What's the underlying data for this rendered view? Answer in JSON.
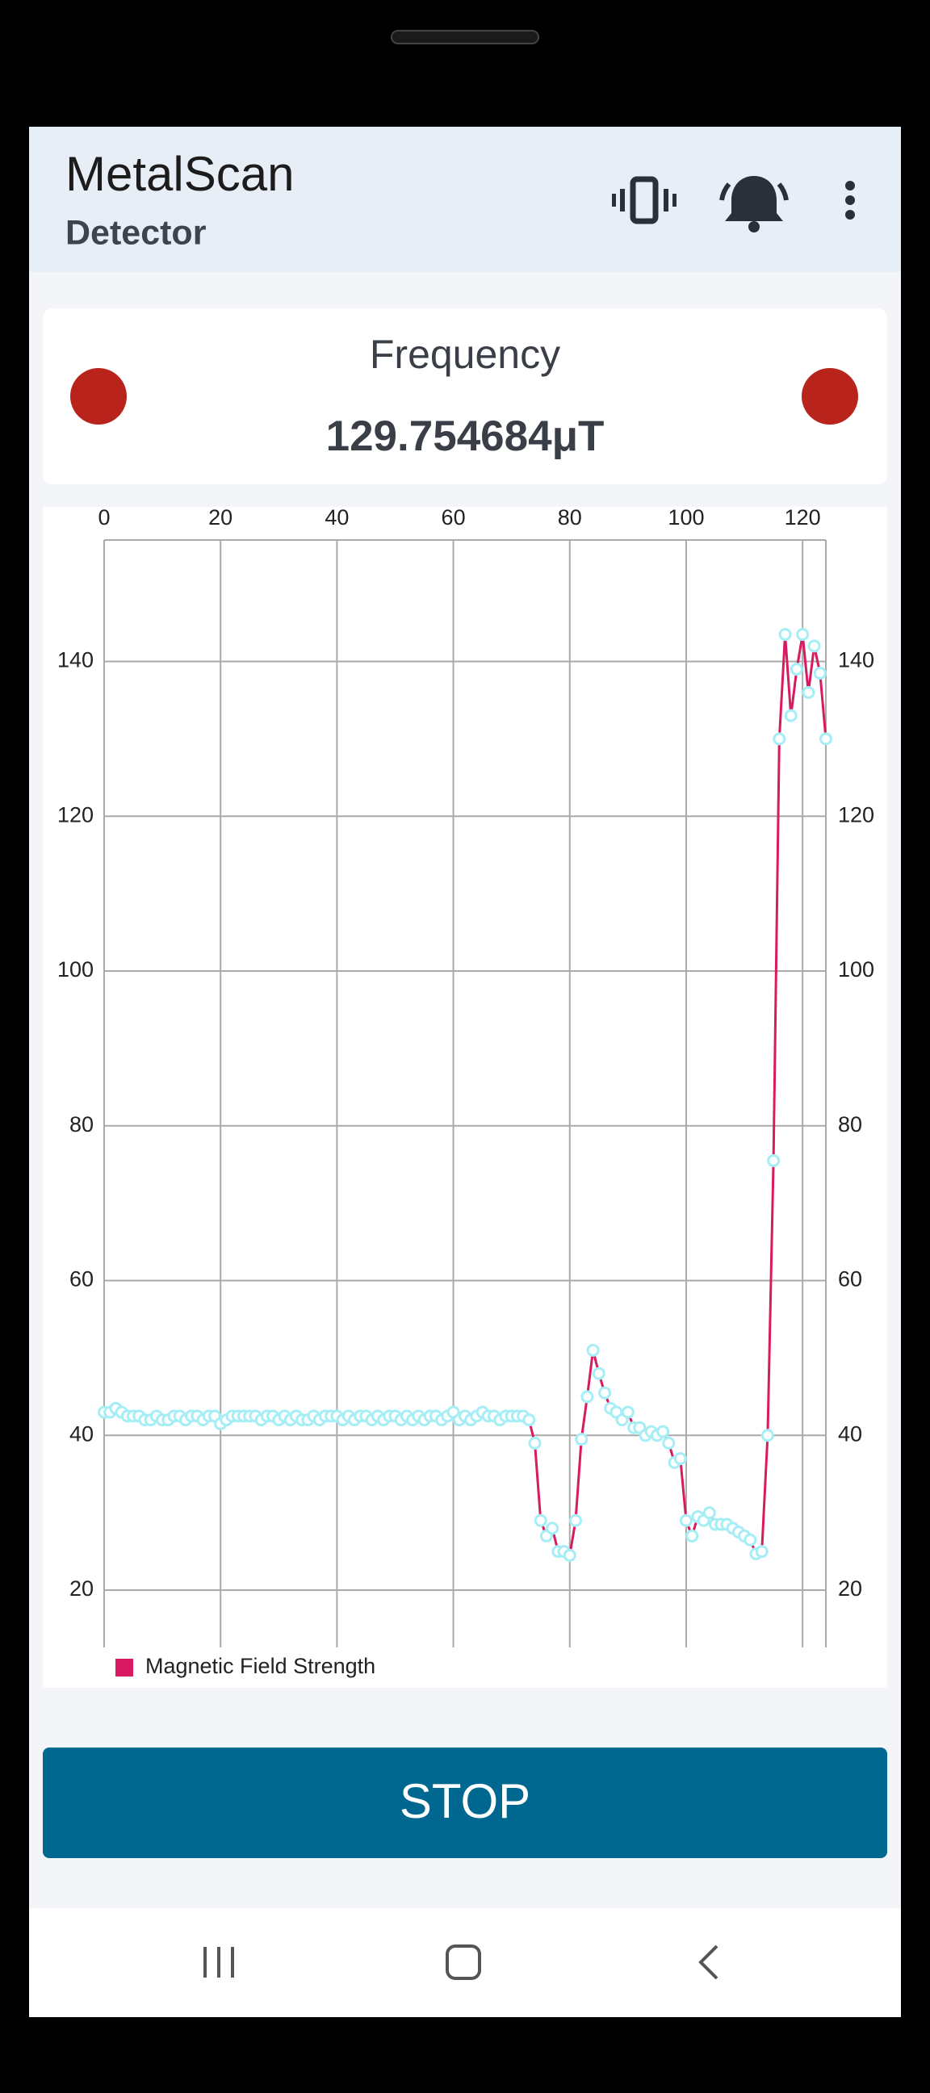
{
  "app_bar": {
    "title": "MetalScan",
    "subtitle": "Detector"
  },
  "card": {
    "label": "Frequency",
    "value": "129.754684μT"
  },
  "chart_data": {
    "type": "line",
    "series": [
      {
        "name": "Magnetic Field Strength",
        "color": "#d81b60",
        "marker_color": "#a6eef5",
        "values": [
          43,
          43,
          43.5,
          43,
          42.5,
          42.5,
          42.5,
          42,
          42,
          42.5,
          42,
          42,
          42.5,
          42.5,
          42,
          42.5,
          42.5,
          42,
          42.5,
          42.5,
          41.5,
          42,
          42.5,
          42.5,
          42.5,
          42.5,
          42.5,
          42,
          42.5,
          42.5,
          42,
          42.5,
          42,
          42.5,
          42,
          42,
          42.5,
          42,
          42.5,
          42.5,
          42.5,
          42,
          42.5,
          42,
          42.5,
          42.5,
          42,
          42.5,
          42,
          42.5,
          42.5,
          42,
          42.5,
          42,
          42.5,
          42,
          42.5,
          42.5,
          42,
          42.5,
          43,
          42,
          42.5,
          42,
          42.5,
          43,
          42.5,
          42.5,
          42,
          42.5,
          42.5,
          42.5,
          42.5,
          42,
          39,
          29,
          27,
          28,
          25,
          25,
          24.5,
          29,
          39.5,
          45,
          51,
          48,
          45.5,
          43.5,
          43,
          42,
          43,
          41,
          41,
          40,
          40.5,
          40,
          40.5,
          39,
          36.5,
          37,
          29,
          27,
          29.5,
          29,
          30,
          28.5,
          28.5,
          28.5,
          28,
          27.5,
          27,
          26.5,
          24.7,
          25,
          40,
          75.5,
          130,
          143.5,
          133,
          139,
          143.5,
          136,
          142,
          138.5,
          130
        ]
      }
    ],
    "x": [
      0,
      1,
      2,
      3,
      4,
      5,
      6,
      7,
      8,
      9,
      10,
      11,
      12,
      13,
      14,
      15,
      16,
      17,
      18,
      19,
      20,
      21,
      22,
      23,
      24,
      25,
      26,
      27,
      28,
      29,
      30,
      31,
      32,
      33,
      34,
      35,
      36,
      37,
      38,
      39,
      40,
      41,
      42,
      43,
      44,
      45,
      46,
      47,
      48,
      49,
      50,
      51,
      52,
      53,
      54,
      55,
      56,
      57,
      58,
      59,
      60,
      61,
      62,
      63,
      64,
      65,
      66,
      67,
      68,
      69,
      70,
      71,
      72,
      73,
      74,
      75,
      76,
      77,
      78,
      79,
      80,
      81,
      82,
      83,
      84,
      85,
      86,
      87,
      88,
      89,
      90,
      91,
      92,
      93,
      94,
      95,
      96,
      97,
      98,
      99,
      100,
      101,
      102,
      103,
      104,
      105,
      106,
      107,
      108,
      109,
      110,
      111,
      112,
      113,
      114,
      115,
      116,
      117,
      118,
      119,
      120,
      121,
      122,
      123,
      124
    ],
    "xlim": [
      0,
      124
    ],
    "xticks": [
      0,
      20,
      40,
      60,
      80,
      100,
      120
    ],
    "ylim": [
      12.6,
      155.7
    ],
    "yticks": [
      20,
      40,
      60,
      80,
      100,
      120,
      140
    ],
    "grid": true,
    "legend": "bottom-left"
  },
  "button": {
    "label": "STOP"
  }
}
